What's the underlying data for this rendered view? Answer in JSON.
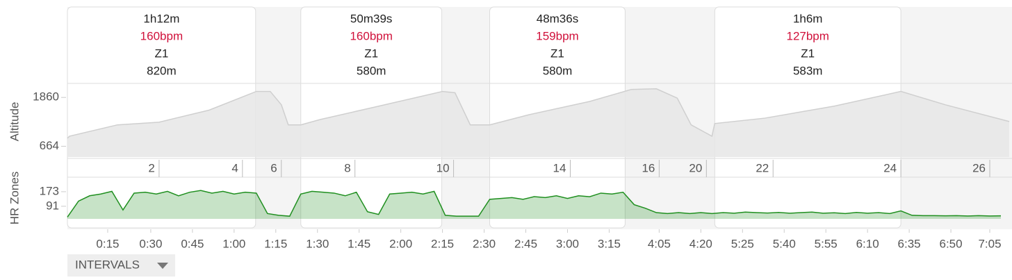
{
  "intervals": [
    {
      "duration": "1h12m",
      "heart_rate": "160bpm",
      "zone": "Z1",
      "distance": "820m",
      "start": 0,
      "end": 67.75
    },
    {
      "duration": "50m39s",
      "heart_rate": "160bpm",
      "zone": "Z1",
      "distance": "580m",
      "start": 84,
      "end": 134.75
    },
    {
      "duration": "48m36s",
      "heart_rate": "159bpm",
      "zone": "Z1",
      "distance": "580m",
      "start": 152,
      "end": 200.75
    },
    {
      "duration": "1h6m",
      "heart_rate": "127bpm",
      "zone": "Z1",
      "distance": "583m",
      "start": 233,
      "end": 300
    }
  ],
  "chart_data": [
    {
      "type": "area",
      "ylabel": "Altitude",
      "color": "#cfcfcf",
      "x": [
        0,
        0.75,
        18,
        33,
        51,
        68,
        73,
        77,
        79.5,
        84,
        91,
        111,
        135,
        139.5,
        145,
        152,
        166,
        188,
        203,
        212,
        219.5,
        224.5,
        232,
        233,
        251,
        276,
        300,
        316,
        339
      ],
      "values": [
        860,
        910,
        1188,
        1254,
        1549,
        2007,
        2007,
        1680,
        1188,
        1188,
        1319,
        1630,
        2007,
        1975,
        1188,
        1188,
        1434,
        1762,
        2056,
        2072,
        1843,
        1188,
        910,
        1221,
        1352,
        1647,
        2007,
        1680,
        1270
      ],
      "xlim": [
        0,
        339
      ],
      "ylim": [
        400,
        2170
      ],
      "yticks": [
        664,
        1860
      ]
    },
    {
      "type": "line",
      "ylabel": "HR Zones",
      "color": "#1f8f1f",
      "x": [
        0,
        4,
        8,
        12,
        16,
        20,
        24,
        28,
        32,
        36,
        40,
        44,
        48,
        52,
        56,
        60,
        64,
        68,
        72,
        76,
        80,
        84,
        88,
        92,
        96,
        100,
        104,
        108,
        112,
        116,
        120,
        124,
        128,
        132,
        136,
        140,
        144,
        148,
        152,
        156,
        160,
        164,
        168,
        172,
        176,
        180,
        184,
        188,
        192,
        196,
        200,
        204,
        208,
        212,
        216,
        220,
        224,
        228,
        232,
        236,
        240,
        244,
        248,
        252,
        256,
        260,
        264,
        268,
        272,
        276,
        280,
        284,
        288,
        292,
        296,
        300,
        304,
        308,
        312,
        316,
        320,
        324,
        328,
        332,
        336
      ],
      "values": [
        30,
        120,
        150,
        160,
        175,
        70,
        165,
        170,
        160,
        175,
        150,
        170,
        180,
        165,
        175,
        160,
        170,
        165,
        50,
        40,
        35,
        160,
        175,
        170,
        165,
        150,
        170,
        60,
        45,
        160,
        165,
        170,
        160,
        175,
        40,
        35,
        35,
        35,
        130,
        135,
        140,
        130,
        145,
        140,
        150,
        135,
        150,
        145,
        165,
        160,
        170,
        100,
        80,
        55,
        50,
        55,
        50,
        55,
        50,
        55,
        52,
        58,
        55,
        53,
        56,
        52,
        55,
        58,
        52,
        54,
        50,
        56,
        52,
        55,
        50,
        65,
        40,
        38,
        38,
        37,
        38,
        36,
        38,
        36,
        37
      ],
      "xlim": [
        0,
        339
      ],
      "ylim": [
        20,
        247
      ],
      "yticks": [
        91,
        173
      ],
      "xticks": [
        {
          "value": 14.5,
          "label": "0:15"
        },
        {
          "value": 30,
          "label": "0:30"
        },
        {
          "value": 45,
          "label": "0:45"
        },
        {
          "value": 60,
          "label": "1:00"
        },
        {
          "value": 75,
          "label": "1:15"
        },
        {
          "value": 90,
          "label": "1:30"
        },
        {
          "value": 105,
          "label": "1:45"
        },
        {
          "value": 120,
          "label": "2:00"
        },
        {
          "value": 135,
          "label": "2:15"
        },
        {
          "value": 150,
          "label": "2:30"
        },
        {
          "value": 165,
          "label": "2:45"
        },
        {
          "value": 180,
          "label": "3:00"
        },
        {
          "value": 195,
          "label": "3:15"
        },
        {
          "value": 213,
          "label": "4:05"
        },
        {
          "value": 228,
          "label": "4:20"
        },
        {
          "value": 243,
          "label": "5:25"
        },
        {
          "value": 258,
          "label": "5:40"
        },
        {
          "value": 273,
          "label": "5:55"
        },
        {
          "value": 288,
          "label": "6:10"
        },
        {
          "value": 303,
          "label": "6:35"
        },
        {
          "value": 318,
          "label": "6:50"
        },
        {
          "value": 332,
          "label": "7:05"
        }
      ],
      "x2ticks": [
        {
          "value": 33,
          "label": "2"
        },
        {
          "value": 63,
          "label": "4"
        },
        {
          "value": 77,
          "label": "6"
        },
        {
          "value": 103.5,
          "label": "8"
        },
        {
          "value": 139,
          "label": "10"
        },
        {
          "value": 181,
          "label": "14"
        },
        {
          "value": 213,
          "label": "16"
        },
        {
          "value": 230,
          "label": "20"
        },
        {
          "value": 254,
          "label": "22"
        },
        {
          "value": 300,
          "label": "24"
        },
        {
          "value": 332,
          "label": "26"
        }
      ]
    }
  ],
  "menu": {
    "label": "INTERVALS"
  }
}
